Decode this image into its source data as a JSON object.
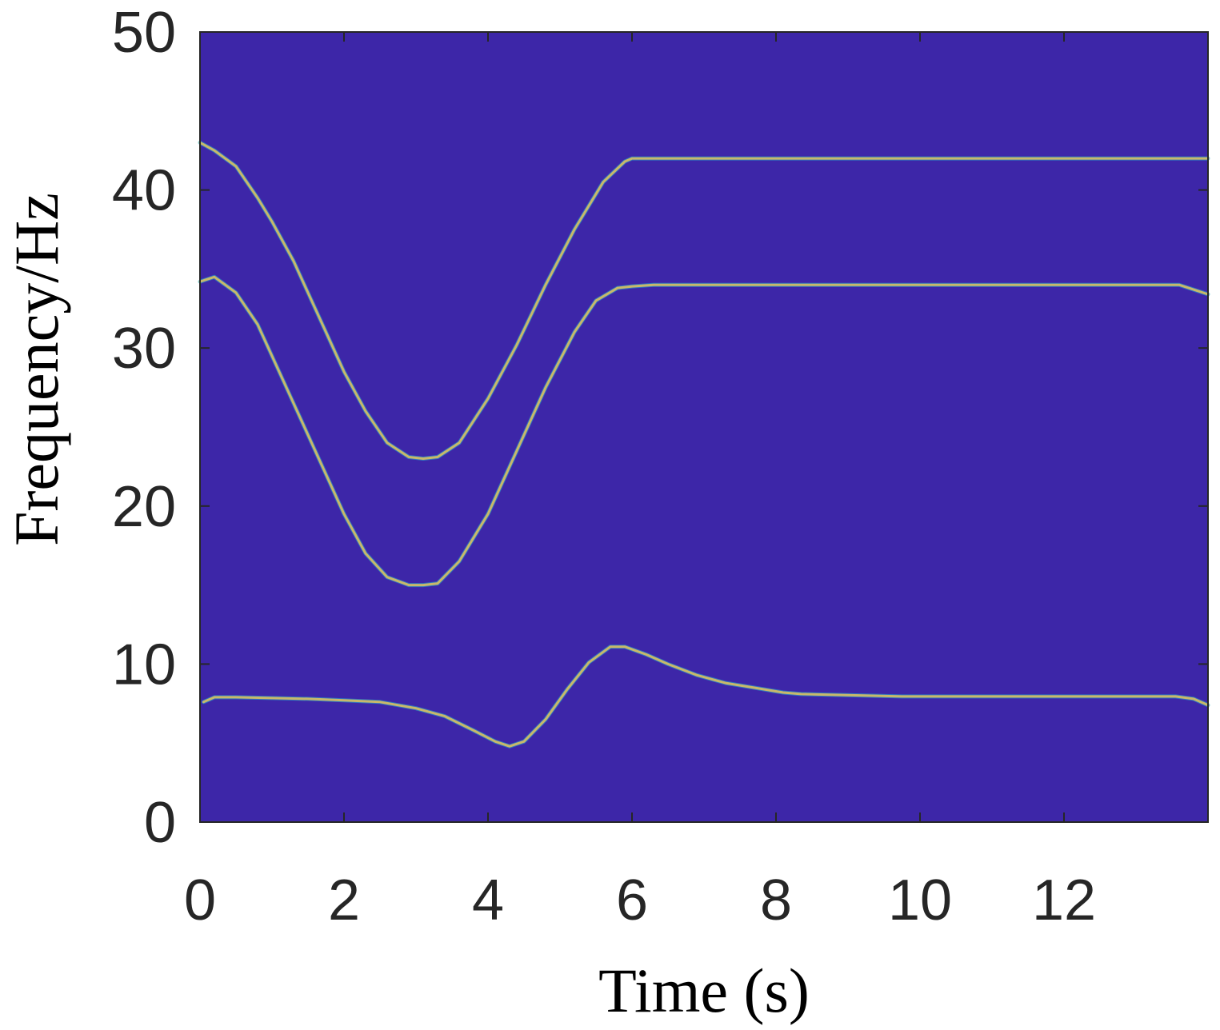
{
  "chart_data": {
    "type": "heatmap",
    "subtype": "time-frequency spectrogram",
    "xlabel": "Time (s)",
    "ylabel": "Frequency/Hz",
    "xlim": [
      0,
      14
    ],
    "ylim": [
      0,
      50
    ],
    "xticks": [
      0,
      2,
      4,
      6,
      8,
      10,
      12
    ],
    "yticks": [
      0,
      10,
      20,
      30,
      40,
      50
    ],
    "grid": false,
    "colors": {
      "background": "#3d26a8",
      "ridge_high": "#f9fb0e",
      "ridge_mid": "#c8b86a",
      "ridge_low": "#29b8d0"
    },
    "series": [
      {
        "x": [
          0,
          0.2,
          0.5,
          0.8,
          1.0,
          1.3,
          1.6,
          2.0,
          2.3,
          2.6,
          2.9,
          3.1,
          3.3,
          3.6,
          4.0,
          4.4,
          4.8,
          5.2,
          5.6,
          5.9,
          6.0,
          6.3,
          7,
          8,
          9,
          10,
          11,
          12,
          13,
          13.6,
          14
        ],
        "y": [
          43,
          42.5,
          41.5,
          39.5,
          38,
          35.5,
          32.5,
          28.5,
          26,
          24,
          23.1,
          23,
          23.1,
          24,
          26.8,
          30.2,
          34,
          37.5,
          40.5,
          41.8,
          42,
          42,
          42,
          42,
          42,
          42,
          42,
          42,
          42,
          42,
          42
        ]
      },
      {
        "x": [
          0,
          0.2,
          0.5,
          0.8,
          1.0,
          1.3,
          1.6,
          2.0,
          2.3,
          2.6,
          2.9,
          3.1,
          3.3,
          3.6,
          4.0,
          4.4,
          4.8,
          5.2,
          5.5,
          5.8,
          6.0,
          6.3,
          7,
          8,
          9,
          10,
          11,
          12,
          13,
          13.6,
          14
        ],
        "y": [
          34.2,
          34.5,
          33.5,
          31.5,
          29.5,
          26.5,
          23.5,
          19.5,
          17,
          15.5,
          15,
          15,
          15.1,
          16.5,
          19.5,
          23.5,
          27.5,
          31,
          33,
          33.8,
          33.9,
          34,
          34,
          34,
          34,
          34,
          34,
          34,
          34,
          34,
          33.4
        ]
      },
      {
        "x": [
          0.05,
          0.2,
          0.5,
          1.0,
          1.5,
          2.0,
          2.5,
          3.0,
          3.4,
          3.8,
          4.1,
          4.3,
          4.5,
          4.8,
          5.1,
          5.4,
          5.7,
          5.9,
          6.2,
          6.5,
          6.9,
          7.3,
          7.7,
          8.1,
          8.35,
          9.75,
          10.5,
          11,
          11.7,
          13.55,
          13.8,
          14
        ],
        "y": [
          7.6,
          7.9,
          7.9,
          7.85,
          7.8,
          7.7,
          7.6,
          7.2,
          6.7,
          5.8,
          5.1,
          4.8,
          5.1,
          6.5,
          8.4,
          10.1,
          11.1,
          11.1,
          10.6,
          10,
          9.3,
          8.8,
          8.5,
          8.2,
          8.1,
          7.95,
          7.95,
          7.95,
          7.95,
          7.95,
          7.8,
          7.4
        ]
      }
    ]
  }
}
